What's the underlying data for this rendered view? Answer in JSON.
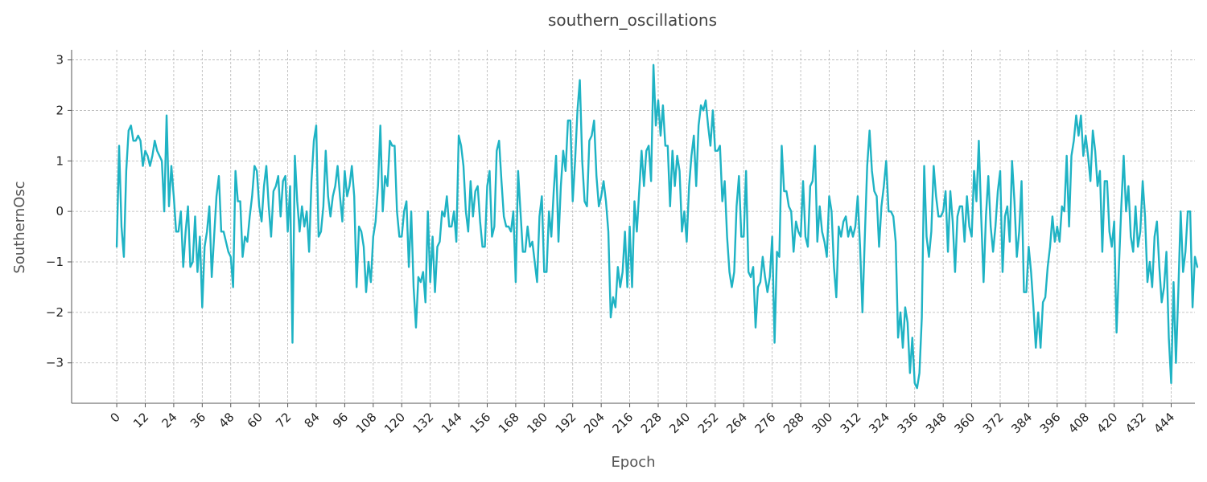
{
  "chart_data": {
    "type": "line",
    "title": "southern_oscillations",
    "xlabel": "Epoch",
    "ylabel": "SouthernOsc",
    "xlim": [
      -19,
      454
    ],
    "ylim": [
      -3.8,
      3.2
    ],
    "x_ticks": [
      0,
      12,
      24,
      36,
      48,
      60,
      72,
      84,
      96,
      108,
      120,
      132,
      144,
      156,
      168,
      180,
      192,
      204,
      216,
      228,
      240,
      252,
      264,
      276,
      288,
      300,
      312,
      324,
      336,
      348,
      360,
      372,
      384,
      396,
      408,
      420,
      432,
      444
    ],
    "y_ticks": [
      -3,
      -2,
      -1,
      0,
      1,
      2,
      3
    ],
    "grid": true,
    "color": "#1fb3c4",
    "series": [
      {
        "x_start": 0,
        "x_step": 1,
        "values": [
          -0.7,
          1.3,
          -0.3,
          -0.9,
          0.8,
          1.6,
          1.7,
          1.4,
          1.4,
          1.5,
          1.4,
          0.9,
          1.2,
          1.1,
          0.9,
          1.1,
          1.4,
          1.2,
          1.1,
          1.0,
          0.0,
          1.9,
          0.1,
          0.9,
          0.3,
          -0.4,
          -0.4,
          0.0,
          -1.1,
          -0.4,
          0.1,
          -1.1,
          -1.0,
          -0.1,
          -1.2,
          -0.5,
          -1.9,
          -0.7,
          -0.4,
          0.1,
          -1.3,
          -0.5,
          0.3,
          0.7,
          -0.4,
          -0.4,
          -0.6,
          -0.8,
          -0.9,
          -1.5,
          0.8,
          0.2,
          0.2,
          -0.9,
          -0.5,
          -0.6,
          -0.1,
          0.3,
          0.9,
          0.8,
          0.1,
          -0.2,
          0.5,
          0.9,
          0.1,
          -0.5,
          0.4,
          0.5,
          0.7,
          -0.1,
          0.6,
          0.7,
          -0.4,
          0.5,
          -2.6,
          1.1,
          0.2,
          -0.4,
          0.1,
          -0.3,
          0.0,
          -0.8,
          0.6,
          1.4,
          1.7,
          -0.5,
          -0.4,
          0.1,
          1.2,
          0.3,
          -0.1,
          0.3,
          0.5,
          0.9,
          0.3,
          -0.2,
          0.8,
          0.3,
          0.5,
          0.9,
          0.3,
          -1.5,
          -0.3,
          -0.4,
          -0.7,
          -1.6,
          -1.0,
          -1.4,
          -0.5,
          -0.2,
          0.5,
          1.7,
          0.0,
          0.7,
          0.5,
          1.4,
          1.3,
          1.3,
          0.0,
          -0.5,
          -0.5,
          0.0,
          0.2,
          -1.1,
          0.0,
          -1.5,
          -2.3,
          -1.3,
          -1.4,
          -1.2,
          -1.8,
          0.0,
          -1.4,
          -0.5,
          -1.6,
          -0.7,
          -0.6,
          0.0,
          -0.1,
          0.3,
          -0.3,
          -0.3,
          0.0,
          -0.6,
          1.5,
          1.3,
          0.9,
          0.0,
          -0.4,
          0.6,
          -0.1,
          0.4,
          0.5,
          -0.2,
          -0.7,
          -0.7,
          0.5,
          0.8,
          -0.5,
          -0.3,
          1.2,
          1.4,
          0.6,
          -0.1,
          -0.3,
          -0.3,
          -0.4,
          0.0,
          -1.4,
          0.8,
          0.0,
          -0.8,
          -0.8,
          -0.3,
          -0.7,
          -0.6,
          -1.0,
          -1.4,
          -0.1,
          0.3,
          -1.2,
          -1.2,
          0.0,
          -0.5,
          0.4,
          1.1,
          -0.6,
          0.5,
          1.2,
          0.8,
          1.8,
          1.8,
          0.2,
          1.0,
          2.0,
          2.6,
          1.0,
          0.2,
          0.1,
          1.4,
          1.5,
          1.8,
          0.7,
          0.1,
          0.3,
          0.6,
          0.2,
          -0.4,
          -2.1,
          -1.7,
          -1.9,
          -1.1,
          -1.5,
          -1.2,
          -0.4,
          -1.5,
          -0.3,
          -1.5,
          0.2,
          -0.4,
          0.4,
          1.2,
          0.5,
          1.2,
          1.3,
          0.6,
          2.9,
          1.7,
          2.2,
          1.5,
          2.1,
          1.3,
          1.3,
          0.1,
          1.2,
          0.5,
          1.1,
          0.8,
          -0.4,
          0.0,
          -0.6,
          0.5,
          1.1,
          1.5,
          0.5,
          1.7,
          2.1,
          2.0,
          2.2,
          1.7,
          1.3,
          2.0,
          1.2,
          1.2,
          1.3,
          0.2,
          0.6,
          -0.5,
          -1.2,
          -1.5,
          -1.2,
          0.1,
          0.7,
          -0.5,
          -0.5,
          0.8,
          -1.2,
          -1.3,
          -1.1,
          -2.3,
          -1.5,
          -1.4,
          -0.9,
          -1.3,
          -1.6,
          -1.3,
          -0.5,
          -2.6,
          -0.8,
          -0.9,
          1.3,
          0.4,
          0.4,
          0.1,
          0.0,
          -0.8,
          -0.2,
          -0.4,
          -0.5,
          0.6,
          -0.5,
          -0.7,
          0.5,
          0.6,
          1.3,
          -0.6,
          0.1,
          -0.4,
          -0.6,
          -0.9,
          0.3,
          0.0,
          -1.1,
          -1.7,
          -0.3,
          -0.5,
          -0.2,
          -0.1,
          -0.5,
          -0.3,
          -0.5,
          -0.3,
          0.3,
          -0.7,
          -2.0,
          -0.5,
          0.9,
          1.6,
          0.8,
          0.4,
          0.3,
          -0.7,
          0.1,
          0.5,
          1.0,
          0.0,
          0.0,
          -0.1,
          -0.6,
          -2.5,
          -2.0,
          -2.7,
          -1.9,
          -2.2,
          -3.2,
          -2.5,
          -3.4,
          -3.5,
          -3.2,
          -2.1,
          0.9,
          -0.5,
          -0.9,
          -0.4,
          0.9,
          0.3,
          -0.1,
          -0.1,
          0.0,
          0.4,
          -0.8,
          0.4,
          -0.2,
          -1.2,
          -0.1,
          0.1,
          0.1,
          -0.6,
          0.3,
          -0.3,
          -0.5,
          0.8,
          0.2,
          1.4,
          -0.1,
          -1.4,
          -0.1,
          0.7,
          -0.3,
          -0.8,
          -0.3,
          0.4,
          0.8,
          -1.2,
          -0.1,
          0.1,
          -0.6,
          1.0,
          0.2,
          -0.9,
          -0.4,
          0.6,
          -1.6,
          -1.6,
          -0.7,
          -1.2,
          -1.9,
          -2.7,
          -2.0,
          -2.7,
          -1.8,
          -1.7,
          -1.1,
          -0.7,
          -0.1,
          -0.6,
          -0.3,
          -0.6,
          0.1,
          0.0,
          1.1,
          -0.3,
          1.1,
          1.4,
          1.9,
          1.5,
          1.9,
          1.1,
          1.5,
          1.1,
          0.6,
          1.6,
          1.2,
          0.5,
          0.8,
          -0.8,
          0.6,
          0.6,
          -0.4,
          -0.7,
          -0.2,
          -2.4,
          -1.1,
          0.1,
          1.1,
          0.0,
          0.5,
          -0.5,
          -0.8,
          0.1,
          -0.7,
          -0.4,
          0.6,
          -0.1,
          -1.4,
          -1.0,
          -1.5,
          -0.5,
          -0.2,
          -1.1,
          -1.8,
          -1.5,
          -0.8,
          -2.5,
          -3.4,
          -1.4,
          -3.0,
          -1.6,
          0.0,
          -1.2,
          -0.8,
          0.0,
          0.0,
          -1.9,
          -0.9,
          -1.1
        ]
      }
    ]
  }
}
